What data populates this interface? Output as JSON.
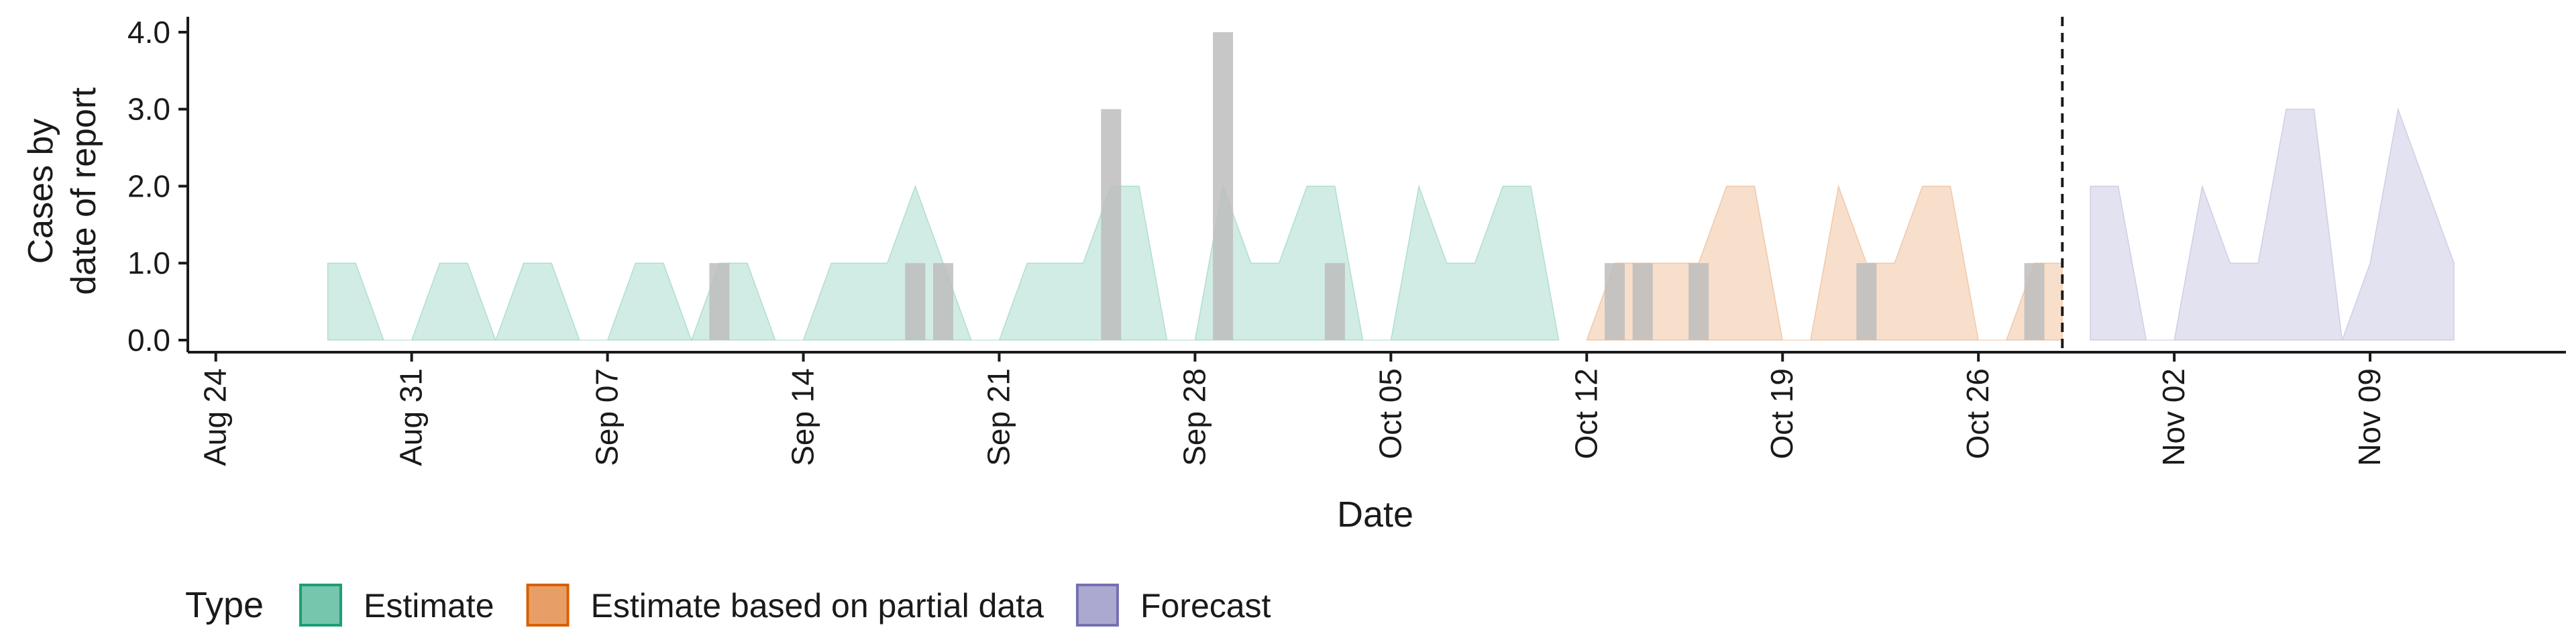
{
  "chart_data": {
    "type": "area",
    "title": "",
    "xlabel": "Date",
    "ylabel_lines": [
      "Cases by",
      "date of report"
    ],
    "ylim": [
      0,
      4.2
    ],
    "yticks": [
      0,
      1,
      2,
      3,
      4
    ],
    "ytick_labels": [
      "0.0",
      "1.0",
      "2.0",
      "3.0",
      "4.0"
    ],
    "xlim": [
      "2020-08-23",
      "2020-11-16"
    ],
    "xticks": [
      {
        "date": "2020-08-24",
        "label": "Aug 24"
      },
      {
        "date": "2020-08-31",
        "label": "Aug 31"
      },
      {
        "date": "2020-09-07",
        "label": "Sep 07"
      },
      {
        "date": "2020-09-14",
        "label": "Sep 14"
      },
      {
        "date": "2020-09-21",
        "label": "Sep 21"
      },
      {
        "date": "2020-09-28",
        "label": "Sep 28"
      },
      {
        "date": "2020-10-05",
        "label": "Oct 05"
      },
      {
        "date": "2020-10-12",
        "label": "Oct 12"
      },
      {
        "date": "2020-10-19",
        "label": "Oct 19"
      },
      {
        "date": "2020-10-26",
        "label": "Oct 26"
      },
      {
        "date": "2020-11-02",
        "label": "Nov 02"
      },
      {
        "date": "2020-11-09",
        "label": "Nov 09"
      }
    ],
    "vline_date": "2020-10-29",
    "legend": {
      "title": "Type",
      "placement": "bottom-left",
      "entries": [
        {
          "label": "Estimate",
          "fill": "#1b9e77",
          "border": "#1b9e77"
        },
        {
          "label": "Estimate based on partial data",
          "fill": "#d95f02",
          "border": "#d95f02"
        },
        {
          "label": "Forecast",
          "fill": "#7570b3",
          "border": "#7570b3"
        }
      ]
    },
    "series": [
      {
        "name": "Estimate",
        "color": "#1b9e77",
        "points": [
          [
            "2020-08-28",
            1
          ],
          [
            "2020-08-29",
            1
          ],
          [
            "2020-08-30",
            0
          ],
          [
            "2020-08-31",
            0
          ],
          [
            "2020-09-01",
            1
          ],
          [
            "2020-09-02",
            1
          ],
          [
            "2020-09-03",
            0
          ],
          [
            "2020-09-04",
            1
          ],
          [
            "2020-09-05",
            1
          ],
          [
            "2020-09-06",
            0
          ],
          [
            "2020-09-07",
            0
          ],
          [
            "2020-09-08",
            1
          ],
          [
            "2020-09-09",
            1
          ],
          [
            "2020-09-10",
            0
          ],
          [
            "2020-09-11",
            1
          ],
          [
            "2020-09-12",
            1
          ],
          [
            "2020-09-13",
            0
          ],
          [
            "2020-09-14",
            0
          ],
          [
            "2020-09-15",
            1
          ],
          [
            "2020-09-16",
            1
          ],
          [
            "2020-09-17",
            1
          ],
          [
            "2020-09-18",
            2
          ],
          [
            "2020-09-19",
            1
          ],
          [
            "2020-09-20",
            0
          ],
          [
            "2020-09-21",
            0
          ],
          [
            "2020-09-22",
            1
          ],
          [
            "2020-09-23",
            1
          ],
          [
            "2020-09-24",
            1
          ],
          [
            "2020-09-25",
            2
          ],
          [
            "2020-09-26",
            2
          ],
          [
            "2020-09-27",
            0
          ],
          [
            "2020-09-28",
            0
          ],
          [
            "2020-09-29",
            2
          ],
          [
            "2020-09-30",
            1
          ],
          [
            "2020-10-01",
            1
          ],
          [
            "2020-10-02",
            2
          ],
          [
            "2020-10-03",
            2
          ],
          [
            "2020-10-04",
            0
          ],
          [
            "2020-10-05",
            0
          ],
          [
            "2020-10-06",
            2
          ],
          [
            "2020-10-07",
            1
          ],
          [
            "2020-10-08",
            1
          ],
          [
            "2020-10-09",
            2
          ],
          [
            "2020-10-10",
            2
          ],
          [
            "2020-10-11",
            0
          ]
        ]
      },
      {
        "name": "Estimate based on partial data",
        "color": "#d95f02",
        "points": [
          [
            "2020-10-12",
            0
          ],
          [
            "2020-10-13",
            1
          ],
          [
            "2020-10-14",
            1
          ],
          [
            "2020-10-15",
            1
          ],
          [
            "2020-10-16",
            1
          ],
          [
            "2020-10-17",
            2
          ],
          [
            "2020-10-18",
            2
          ],
          [
            "2020-10-19",
            0
          ],
          [
            "2020-10-20",
            0
          ],
          [
            "2020-10-21",
            2
          ],
          [
            "2020-10-22",
            1
          ],
          [
            "2020-10-23",
            1
          ],
          [
            "2020-10-24",
            2
          ],
          [
            "2020-10-25",
            2
          ],
          [
            "2020-10-26",
            0
          ],
          [
            "2020-10-27",
            0
          ],
          [
            "2020-10-28",
            1
          ],
          [
            "2020-10-29",
            1
          ]
        ]
      },
      {
        "name": "Forecast",
        "color": "#7570b3",
        "points": [
          [
            "2020-10-30",
            2
          ],
          [
            "2020-10-31",
            2
          ],
          [
            "2020-11-01",
            0
          ],
          [
            "2020-11-02",
            0
          ],
          [
            "2020-11-03",
            2
          ],
          [
            "2020-11-04",
            1
          ],
          [
            "2020-11-05",
            1
          ],
          [
            "2020-11-06",
            3
          ],
          [
            "2020-11-07",
            3
          ],
          [
            "2020-11-08",
            0
          ],
          [
            "2020-11-09",
            1
          ],
          [
            "2020-11-10",
            3
          ],
          [
            "2020-11-11",
            2
          ],
          [
            "2020-11-12",
            1
          ]
        ]
      }
    ],
    "reported_cases": {
      "type": "bar",
      "color": "#bdbdbd",
      "points": [
        [
          "2020-09-11",
          1
        ],
        [
          "2020-09-18",
          1
        ],
        [
          "2020-09-19",
          1
        ],
        [
          "2020-09-25",
          3
        ],
        [
          "2020-09-29",
          4
        ],
        [
          "2020-10-03",
          1
        ],
        [
          "2020-10-13",
          1
        ],
        [
          "2020-10-14",
          1
        ],
        [
          "2020-10-16",
          1
        ],
        [
          "2020-10-22",
          1
        ],
        [
          "2020-10-28",
          1
        ]
      ]
    }
  }
}
